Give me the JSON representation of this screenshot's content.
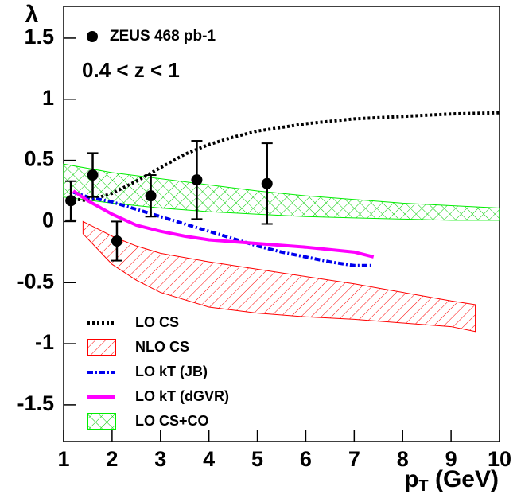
{
  "chart_data": {
    "type": "line",
    "ylabel": "λ",
    "xlabel": {
      "text": "p",
      "sub": "T",
      "after": " (GeV)"
    },
    "annotation": "0.4 < z < 1",
    "xlim": [
      1,
      10
    ],
    "ylim": [
      -1.8,
      1.76
    ],
    "xticks": [
      1,
      2,
      3,
      4,
      5,
      6,
      7,
      8,
      9,
      10
    ],
    "yticks": [
      -1.5,
      -1,
      -0.5,
      0,
      0.5,
      1,
      1.5
    ],
    "series": [
      {
        "name": "ZEUS 468 pb-1",
        "kind": "points",
        "color": "#000000",
        "x": [
          1.15,
          1.6,
          2.1,
          2.8,
          3.75,
          5.2
        ],
        "values": [
          0.17,
          0.38,
          -0.16,
          0.21,
          0.34,
          0.31
        ],
        "errors": [
          0.16,
          0.18,
          0.16,
          0.17,
          0.32,
          0.33
        ]
      },
      {
        "name": "LO CS",
        "kind": "line",
        "style": "dotted",
        "color": "#000000",
        "x": [
          1.1,
          1.5,
          2,
          2.5,
          3,
          3.5,
          4,
          4.5,
          5,
          6,
          7,
          8,
          9,
          10
        ],
        "values": [
          0.19,
          0.17,
          0.23,
          0.33,
          0.44,
          0.55,
          0.63,
          0.69,
          0.74,
          0.8,
          0.84,
          0.86,
          0.88,
          0.89
        ]
      },
      {
        "name": "NLO CS",
        "kind": "band",
        "style": "hatch",
        "color": "#ff0000",
        "x": [
          1.4,
          2,
          2.5,
          3,
          4,
          5,
          6,
          7,
          8,
          9,
          9.5
        ],
        "upper": [
          0,
          -0.12,
          -0.2,
          -0.26,
          -0.33,
          -0.39,
          -0.45,
          -0.51,
          -0.58,
          -0.65,
          -0.68
        ],
        "lower": [
          -0.1,
          -0.35,
          -0.48,
          -0.58,
          -0.7,
          -0.75,
          -0.78,
          -0.8,
          -0.83,
          -0.86,
          -0.9
        ]
      },
      {
        "name": "LO kT (JB)",
        "kind": "line",
        "style": "dashdot",
        "color": "#0000ee",
        "x": [
          1.2,
          1.5,
          2,
          2.5,
          3,
          3.5,
          4,
          4.5,
          5,
          5.5,
          6,
          6.5,
          7,
          7.4
        ],
        "values": [
          0.24,
          0.2,
          0.16,
          0.1,
          0.04,
          -0.02,
          -0.08,
          -0.14,
          -0.2,
          -0.25,
          -0.29,
          -0.33,
          -0.36,
          -0.36
        ]
      },
      {
        "name": "LO kT (dGVR)",
        "kind": "line",
        "style": "solid",
        "color": "#ff00ff",
        "x": [
          1.2,
          1.5,
          2,
          2.5,
          3,
          3.5,
          4,
          5,
          6,
          7,
          7.4
        ],
        "values": [
          0.25,
          0.17,
          0.06,
          -0.03,
          -0.08,
          -0.12,
          -0.15,
          -0.18,
          -0.21,
          -0.25,
          -0.29
        ]
      },
      {
        "name": "LO CS+CO",
        "kind": "band",
        "style": "crosshatch",
        "color": "#00ee00",
        "x": [
          1,
          2,
          3,
          4,
          5,
          6,
          7,
          8,
          9,
          10
        ],
        "upper": [
          0.47,
          0.4,
          0.35,
          0.3,
          0.25,
          0.21,
          0.18,
          0.15,
          0.13,
          0.11
        ],
        "lower": [
          0.2,
          0.15,
          0.11,
          0.08,
          0.06,
          0.04,
          0.03,
          0.02,
          0.01,
          0.01
        ]
      }
    ]
  }
}
